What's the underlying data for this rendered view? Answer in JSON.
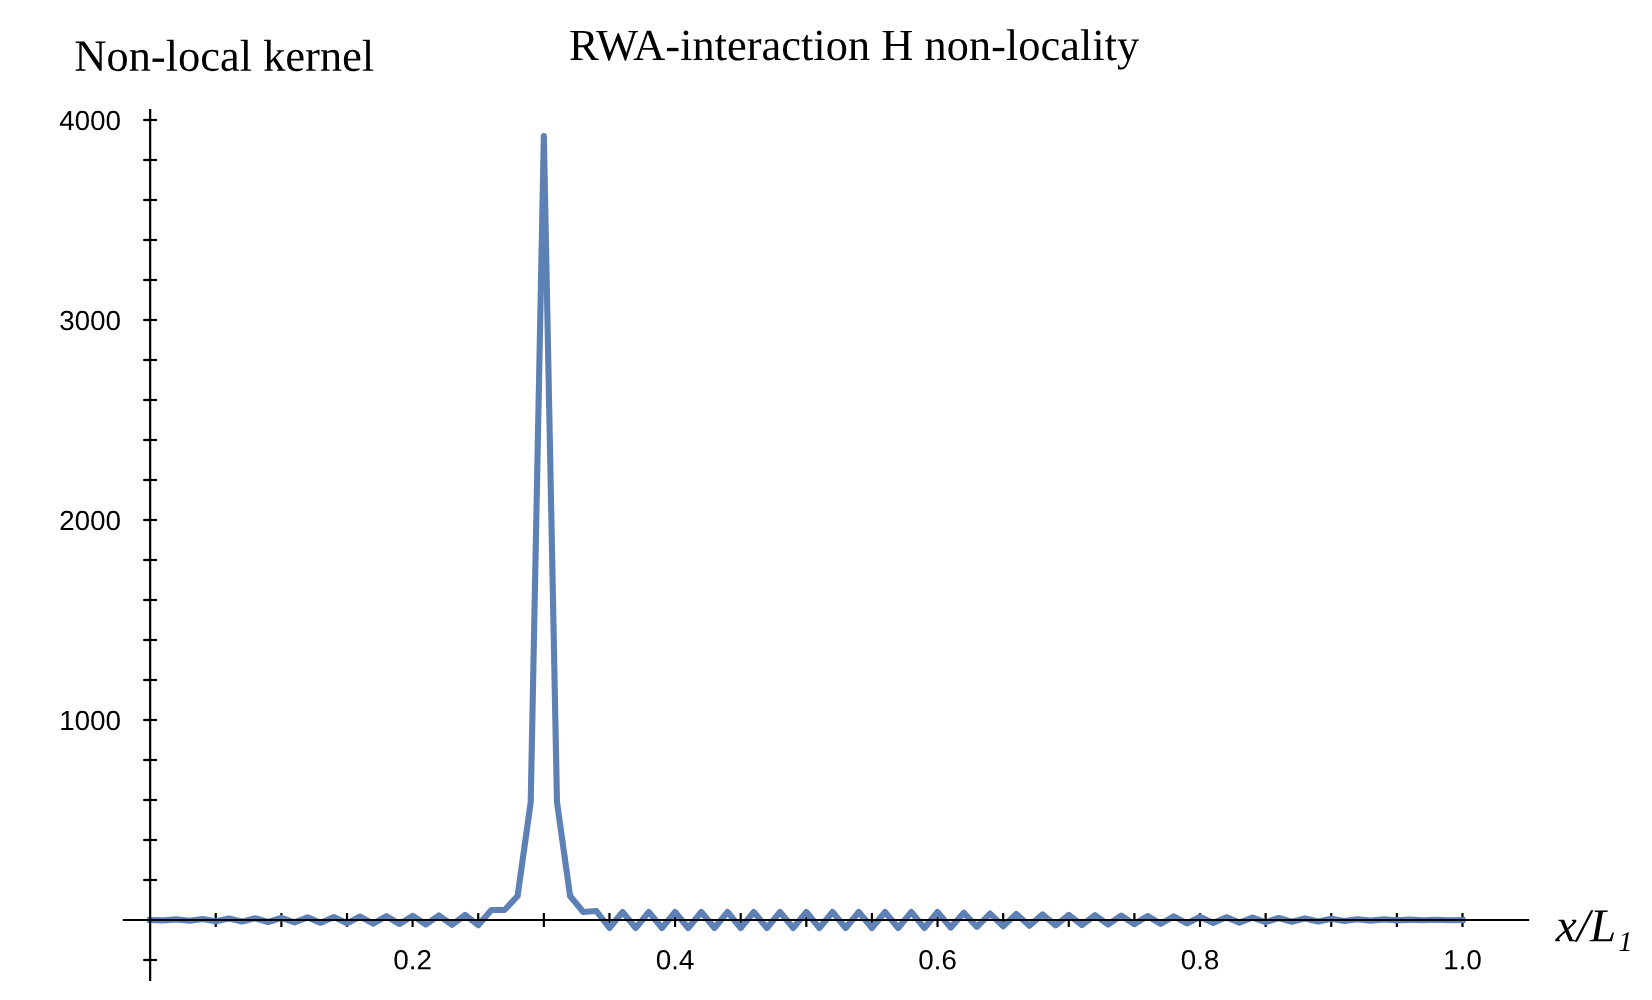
{
  "chart_data": {
    "type": "line",
    "title": "RWA-interaction H non-locality",
    "ylabel": "Non-local kernel",
    "xlabel": "x/L₁",
    "x": [
      0.0,
      0.01,
      0.02,
      0.03,
      0.04,
      0.05,
      0.06,
      0.07,
      0.08,
      0.09,
      0.1,
      0.11,
      0.12,
      0.13,
      0.14,
      0.15,
      0.16,
      0.17,
      0.18,
      0.19,
      0.2,
      0.21,
      0.22,
      0.23,
      0.24,
      0.25,
      0.26,
      0.27,
      0.28,
      0.29,
      0.3,
      0.31,
      0.32,
      0.33,
      0.34,
      0.35,
      0.36,
      0.37,
      0.38,
      0.39,
      0.4,
      0.41,
      0.42,
      0.43,
      0.44,
      0.45,
      0.46,
      0.47,
      0.48,
      0.49,
      0.5,
      0.51,
      0.52,
      0.53,
      0.54,
      0.55,
      0.56,
      0.57,
      0.58,
      0.59,
      0.6,
      0.61,
      0.62,
      0.63,
      0.64,
      0.65,
      0.66,
      0.67,
      0.68,
      0.69,
      0.7,
      0.71,
      0.72,
      0.73,
      0.74,
      0.75,
      0.76,
      0.77,
      0.78,
      0.79,
      0.8,
      0.81,
      0.82,
      0.83,
      0.84,
      0.85,
      0.86,
      0.87,
      0.88,
      0.89,
      0.9,
      0.91,
      0.92,
      0.93,
      0.94,
      0.95,
      0.96,
      0.97,
      0.98,
      0.99,
      1.0
    ],
    "series": [
      {
        "color": "#5e81b5",
        "values": [
          0,
          -2,
          3,
          -4,
          5,
          -6,
          7,
          -8,
          9,
          -10,
          11,
          -12,
          13,
          -14,
          15,
          -16,
          17,
          -18,
          19,
          -20,
          21,
          -22,
          23,
          -24,
          25,
          -26,
          50,
          50,
          120,
          590,
          3920,
          590,
          120,
          40,
          45,
          -40,
          40,
          -40,
          40,
          -40,
          40,
          -40,
          40,
          -40,
          40,
          -40,
          40,
          -40,
          40,
          -40,
          40,
          -40,
          40,
          -40,
          40,
          -40,
          40,
          -40,
          40,
          -40,
          40,
          -38,
          36,
          -34,
          32,
          -31,
          30,
          -29,
          28,
          -27,
          26,
          -25,
          24,
          -23,
          22,
          -21,
          20,
          -19,
          18,
          -17,
          16,
          -15,
          14,
          -13,
          12,
          -11,
          10,
          -9,
          8,
          -7,
          6,
          -5,
          4,
          -3,
          3,
          -2,
          2,
          -1,
          1,
          -1,
          0
        ]
      }
    ],
    "xlim": [
      -0.02,
      1.05
    ],
    "ylim": [
      -300,
      4050
    ],
    "xticks": [
      {
        "value": 0.05,
        "label": null
      },
      {
        "value": 0.1,
        "label": null
      },
      {
        "value": 0.15,
        "label": null
      },
      0.2,
      {
        "value": 0.25,
        "label": null
      },
      {
        "value": 0.3,
        "label": null
      },
      {
        "value": 0.35,
        "label": null
      },
      0.4,
      {
        "value": 0.45,
        "label": null
      },
      {
        "value": 0.5,
        "label": null
      },
      {
        "value": 0.55,
        "label": null
      },
      0.6,
      {
        "value": 0.65,
        "label": null
      },
      {
        "value": 0.7,
        "label": null
      },
      {
        "value": 0.75,
        "label": null
      },
      0.8,
      {
        "value": 0.85,
        "label": null
      },
      {
        "value": 0.9,
        "label": null
      },
      {
        "value": 0.95,
        "label": null
      },
      {
        "value": 1.0,
        "label": "1.0"
      }
    ],
    "yticks": [
      {
        "value": -200,
        "label": null
      },
      {
        "value": 200,
        "label": null
      },
      {
        "value": 400,
        "label": null
      },
      {
        "value": 600,
        "label": null
      },
      {
        "value": 800,
        "label": null
      },
      1000,
      {
        "value": 1200,
        "label": null
      },
      {
        "value": 1400,
        "label": null
      },
      {
        "value": 1600,
        "label": null
      },
      {
        "value": 1800,
        "label": null
      },
      2000,
      {
        "value": 2200,
        "label": null
      },
      {
        "value": 2400,
        "label": null
      },
      {
        "value": 2600,
        "label": null
      },
      {
        "value": 2800,
        "label": null
      },
      3000,
      {
        "value": 3200,
        "label": null
      },
      {
        "value": 3400,
        "label": null
      },
      {
        "value": 3600,
        "label": null
      },
      {
        "value": 3800,
        "label": null
      },
      4000
    ],
    "grid": false,
    "line_style": "solid"
  }
}
